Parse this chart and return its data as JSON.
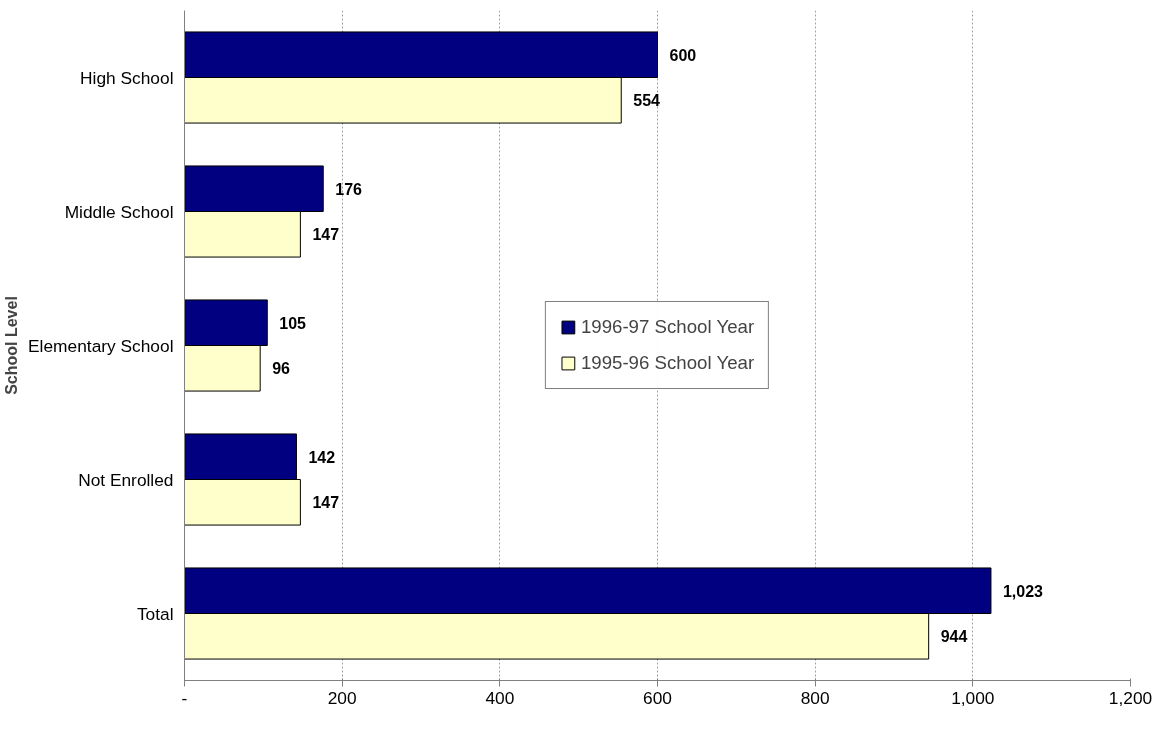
{
  "chart_data": {
    "type": "bar",
    "orientation": "horizontal",
    "ylabel": "School Level",
    "categories": [
      "High School",
      "Middle School",
      "Elementary School",
      "Not Enrolled",
      "Total"
    ],
    "series": [
      {
        "name": "1996-97 School Year",
        "color": "#000080",
        "values": [
          600,
          176,
          105,
          142,
          1023
        ],
        "value_labels": [
          "600",
          "176",
          "105",
          "142",
          "1,023"
        ]
      },
      {
        "name": "1995-96 School Year",
        "color": "#ffffcc",
        "values": [
          554,
          147,
          96,
          147,
          944
        ],
        "value_labels": [
          "554",
          "147",
          "96",
          "147",
          "944"
        ]
      }
    ],
    "xlim": [
      0,
      1200
    ],
    "xticks": [
      {
        "value": 0,
        "label": "-"
      },
      200,
      400,
      600,
      800,
      {
        "value": 1000,
        "label": "1,000"
      },
      {
        "value": 1200,
        "label": "1,200"
      }
    ],
    "grid": "x",
    "legend": "center"
  }
}
